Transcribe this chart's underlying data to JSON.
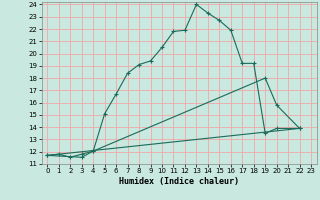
{
  "xlabel": "Humidex (Indice chaleur)",
  "bg_color": "#c8e8e0",
  "grid_color": "#f0a8a8",
  "line_color": "#1a6b5a",
  "xlim": [
    -0.5,
    23.5
  ],
  "ylim": [
    11,
    24.2
  ],
  "xticks": [
    0,
    1,
    2,
    3,
    4,
    5,
    6,
    7,
    8,
    9,
    10,
    11,
    12,
    13,
    14,
    15,
    16,
    17,
    18,
    19,
    20,
    21,
    22,
    23
  ],
  "yticks": [
    11,
    12,
    13,
    14,
    15,
    16,
    17,
    18,
    19,
    20,
    21,
    22,
    23,
    24
  ],
  "line1_x": [
    0,
    1,
    2,
    3,
    4,
    5,
    6,
    7,
    8,
    9,
    10,
    11,
    12,
    13,
    14,
    15,
    16,
    17,
    18,
    19,
    20,
    22
  ],
  "line1_y": [
    11.7,
    11.8,
    11.55,
    11.8,
    12.05,
    15.1,
    16.7,
    18.4,
    19.1,
    19.4,
    20.5,
    21.8,
    21.9,
    24.0,
    23.3,
    22.7,
    21.9,
    19.2,
    19.2,
    13.5,
    13.9,
    13.9
  ],
  "line2_x": [
    0,
    3,
    4,
    19,
    20,
    22
  ],
  "line2_y": [
    11.7,
    11.55,
    12.05,
    18.0,
    15.8,
    13.9
  ],
  "line3_x": [
    0,
    22
  ],
  "line3_y": [
    11.7,
    13.9
  ],
  "line4_x": [
    0,
    22
  ],
  "line4_y": [
    11.7,
    13.9
  ]
}
